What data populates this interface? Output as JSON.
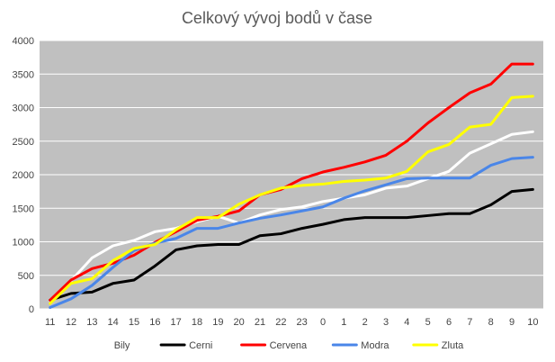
{
  "chart_data": {
    "type": "line",
    "title": "Celkový vývoj bodů v čase",
    "xlabel": "",
    "ylabel": "",
    "categories": [
      "11",
      "12",
      "13",
      "14",
      "15",
      "16",
      "17",
      "18",
      "19",
      "20",
      "21",
      "22",
      "23",
      "0",
      "1",
      "2",
      "3",
      "4",
      "5",
      "6",
      "7",
      "8",
      "9",
      "10"
    ],
    "ylim": [
      0,
      4000
    ],
    "yticks": [
      0,
      500,
      1000,
      1500,
      2000,
      2500,
      3000,
      3500,
      4000
    ],
    "grid": true,
    "legend_position": "bottom",
    "plot_background": "#c0c0c0",
    "series": [
      {
        "name": "Bily",
        "color": "#ffffff",
        "values": [
          120,
          420,
          760,
          940,
          1020,
          1150,
          1200,
          1300,
          1380,
          1280,
          1400,
          1480,
          1520,
          1600,
          1650,
          1700,
          1800,
          1830,
          1940,
          2050,
          2320,
          2460,
          2600,
          2640
        ]
      },
      {
        "name": "Cerni",
        "color": "#000000",
        "values": [
          130,
          230,
          250,
          380,
          430,
          640,
          880,
          940,
          960,
          960,
          1090,
          1120,
          1200,
          1260,
          1330,
          1360,
          1360,
          1360,
          1390,
          1420,
          1420,
          1550,
          1750,
          1780
        ]
      },
      {
        "name": "Cervena",
        "color": "#ff0000",
        "values": [
          130,
          430,
          600,
          680,
          800,
          990,
          1150,
          1320,
          1380,
          1460,
          1700,
          1780,
          1940,
          2040,
          2110,
          2190,
          2290,
          2500,
          2770,
          3000,
          3220,
          3350,
          3650,
          3650
        ]
      },
      {
        "name": "Modra",
        "color": "#4a86e8",
        "values": [
          20,
          150,
          350,
          620,
          870,
          980,
          1050,
          1200,
          1200,
          1280,
          1350,
          1400,
          1460,
          1520,
          1650,
          1760,
          1850,
          1940,
          1950,
          1950,
          1950,
          2140,
          2240,
          2260
        ]
      },
      {
        "name": "Zluta",
        "color": "#ffff00",
        "values": [
          80,
          380,
          450,
          720,
          900,
          960,
          1180,
          1360,
          1360,
          1560,
          1700,
          1800,
          1840,
          1860,
          1900,
          1920,
          1950,
          2050,
          2340,
          2450,
          2710,
          2750,
          3150,
          3170
        ]
      }
    ]
  }
}
